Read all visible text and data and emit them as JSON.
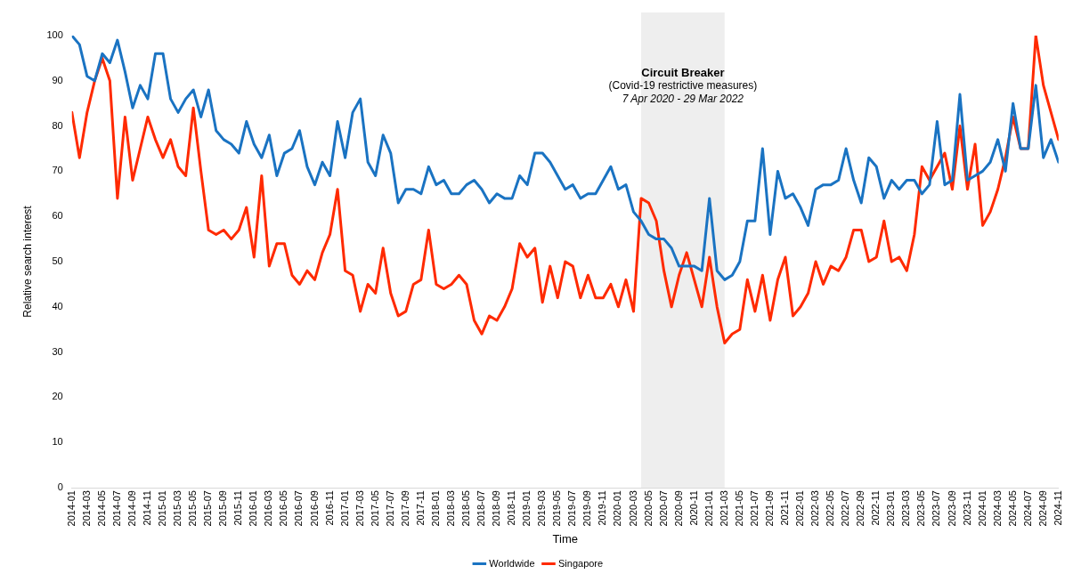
{
  "chart_data": {
    "type": "line",
    "xlabel": "Time",
    "ylabel": "Relative search interest",
    "x": [
      "2014-01",
      "2014-02",
      "2014-03",
      "2014-04",
      "2014-05",
      "2014-06",
      "2014-07",
      "2014-08",
      "2014-09",
      "2014-10",
      "2014-11",
      "2014-12",
      "2015-01",
      "2015-02",
      "2015-03",
      "2015-04",
      "2015-05",
      "2015-06",
      "2015-07",
      "2015-08",
      "2015-09",
      "2015-10",
      "2015-11",
      "2015-12",
      "2016-01",
      "2016-02",
      "2016-03",
      "2016-04",
      "2016-05",
      "2016-06",
      "2016-07",
      "2016-08",
      "2016-09",
      "2016-10",
      "2016-11",
      "2016-12",
      "2017-01",
      "2017-02",
      "2017-03",
      "2017-04",
      "2017-05",
      "2017-06",
      "2017-07",
      "2017-08",
      "2017-09",
      "2017-10",
      "2017-11",
      "2017-12",
      "2018-01",
      "2018-02",
      "2018-03",
      "2018-04",
      "2018-05",
      "2018-06",
      "2018-07",
      "2018-08",
      "2018-09",
      "2018-10",
      "2018-11",
      "2018-12",
      "2019-01",
      "2019-02",
      "2019-03",
      "2019-04",
      "2019-05",
      "2019-06",
      "2019-07",
      "2019-08",
      "2019-09",
      "2019-10",
      "2019-11",
      "2019-12",
      "2020-01",
      "2020-02",
      "2020-03",
      "2020-04",
      "2020-05",
      "2020-06",
      "2020-07",
      "2020-08",
      "2020-09",
      "2020-10",
      "2020-11",
      "2020-12",
      "2021-01",
      "2021-02",
      "2021-03",
      "2021-04",
      "2021-05",
      "2021-06",
      "2021-07",
      "2021-08",
      "2021-09",
      "2021-10",
      "2021-11",
      "2021-12",
      "2022-01",
      "2022-02",
      "2022-03",
      "2022-04",
      "2022-05",
      "2022-06",
      "2022-07",
      "2022-08",
      "2022-09",
      "2022-10",
      "2022-11",
      "2022-12",
      "2023-01",
      "2023-02",
      "2023-03",
      "2023-04",
      "2023-05",
      "2023-06",
      "2023-07",
      "2023-08",
      "2023-09",
      "2023-10",
      "2023-11",
      "2023-12",
      "2024-01",
      "2024-02",
      "2024-03",
      "2024-04",
      "2024-05",
      "2024-06",
      "2024-07",
      "2024-08",
      "2024-09",
      "2024-10",
      "2024-11"
    ],
    "series": [
      {
        "name": "Worldwide",
        "color": "#1a73c2",
        "values": [
          100,
          98,
          91,
          90,
          96,
          94,
          99,
          92,
          84,
          89,
          86,
          96,
          96,
          86,
          83,
          86,
          88,
          82,
          88,
          79,
          77,
          76,
          74,
          81,
          76,
          73,
          78,
          69,
          74,
          75,
          79,
          71,
          67,
          72,
          69,
          81,
          73,
          83,
          86,
          72,
          69,
          78,
          74,
          63,
          66,
          66,
          65,
          71,
          67,
          68,
          65,
          65,
          67,
          68,
          66,
          63,
          65,
          64,
          64,
          69,
          67,
          74,
          74,
          72,
          69,
          66,
          67,
          64,
          65,
          65,
          68,
          71,
          66,
          67,
          61,
          59,
          56,
          55,
          55,
          53,
          49,
          49,
          49,
          48,
          64,
          48,
          46,
          47,
          50,
          59,
          59,
          75,
          56,
          70,
          64,
          65,
          62,
          58,
          66,
          67,
          67,
          68,
          75,
          68,
          63,
          73,
          71,
          64,
          68,
          66,
          68,
          68,
          65,
          67,
          81,
          67,
          68,
          87,
          68,
          69,
          70,
          72,
          77,
          70,
          85,
          75,
          75,
          89,
          73,
          77,
          72
        ]
      },
      {
        "name": "Singapore",
        "color": "#ff2a00",
        "values": [
          83,
          73,
          83,
          90,
          95,
          90,
          64,
          82,
          68,
          75,
          82,
          77,
          73,
          77,
          71,
          69,
          84,
          70,
          57,
          56,
          57,
          55,
          57,
          62,
          51,
          69,
          49,
          54,
          54,
          47,
          45,
          48,
          46,
          52,
          56,
          66,
          48,
          47,
          39,
          45,
          43,
          53,
          43,
          38,
          39,
          45,
          46,
          57,
          45,
          44,
          45,
          47,
          45,
          37,
          34,
          38,
          37,
          40,
          44,
          54,
          51,
          53,
          41,
          49,
          42,
          50,
          49,
          42,
          47,
          42,
          42,
          45,
          40,
          46,
          39,
          64,
          63,
          59,
          48,
          40,
          47,
          52,
          46,
          40,
          51,
          40,
          32,
          34,
          35,
          46,
          39,
          47,
          37,
          46,
          51,
          38,
          40,
          43,
          50,
          45,
          49,
          48,
          51,
          57,
          57,
          50,
          51,
          59,
          50,
          51,
          48,
          56,
          71,
          68,
          71,
          74,
          66,
          80,
          66,
          76,
          58,
          61,
          66,
          73,
          82,
          75,
          75,
          100,
          89,
          83,
          77
        ]
      }
    ],
    "xlim": [
      "2014-01",
      "2024-11"
    ],
    "xticks": [
      "2014-01",
      "2014-03",
      "2014-05",
      "2014-07",
      "2014-09",
      "2014-11",
      "2015-01",
      "2015-03",
      "2015-05",
      "2015-07",
      "2015-09",
      "2015-11",
      "2016-01",
      "2016-03",
      "2016-05",
      "2016-07",
      "2016-09",
      "2016-11",
      "2017-01",
      "2017-03",
      "2017-05",
      "2017-07",
      "2017-09",
      "2017-11",
      "2018-01",
      "2018-03",
      "2018-05",
      "2018-07",
      "2018-09",
      "2018-11",
      "2019-01",
      "2019-03",
      "2019-05",
      "2019-07",
      "2019-09",
      "2019-11",
      "2020-01",
      "2020-03",
      "2020-05",
      "2020-07",
      "2020-09",
      "2020-11",
      "2021-01",
      "2021-03",
      "2021-05",
      "2021-07",
      "2021-09",
      "2021-11",
      "2022-01",
      "2022-03",
      "2022-05",
      "2022-07",
      "2022-09",
      "2022-11",
      "2023-01",
      "2023-03",
      "2023-05",
      "2023-07",
      "2023-09",
      "2023-11",
      "2024-01",
      "2024-03",
      "2024-05",
      "2024-07",
      "2024-09",
      "2024-11"
    ],
    "ylim": [
      0,
      100
    ],
    "yticks": [
      0,
      10,
      20,
      30,
      40,
      50,
      60,
      70,
      80,
      90,
      100
    ],
    "bands": [
      {
        "axis": "x",
        "from": "2020-04",
        "to": "2021-03",
        "label": "Circuit Breaker",
        "color": "#eeeeee"
      }
    ],
    "annotations": [
      "(Covid-19 restrictive measures)",
      "7 Apr 2020 - 29 Mar 2022"
    ],
    "grid": false,
    "legend": "bottom",
    "marker": "none",
    "line_style": "solid"
  }
}
